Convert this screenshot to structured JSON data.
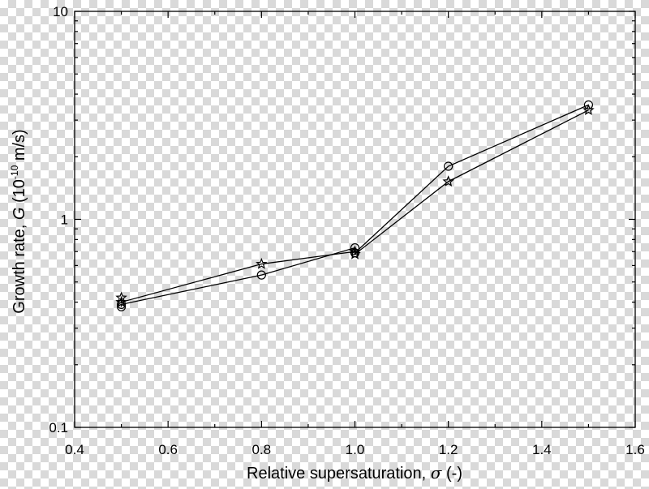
{
  "chart_data": {
    "type": "line",
    "title": "",
    "xlabel_prefix": "Relative supersaturation, ",
    "xlabel_symbol": "σ",
    "xlabel_suffix": " (-)",
    "ylabel_prefix": "Growth rate, ",
    "ylabel_symbol": "G",
    "ylabel_unit_open": " (10",
    "ylabel_exp": "-10",
    "ylabel_unit_close": " m/s)",
    "xlim": [
      0.4,
      1.6
    ],
    "ylim": [
      0.1,
      10
    ],
    "yscale": "log",
    "x_ticks": [
      0.4,
      0.6,
      0.8,
      1.0,
      1.2,
      1.4,
      1.6
    ],
    "x_tick_labels": [
      "0.4",
      "0.6",
      "0.8",
      "1.0",
      "1.2",
      "1.4",
      "1.6"
    ],
    "y_major_ticks": [
      0.1,
      1,
      10
    ],
    "y_tick_labels": [
      "0.1",
      "1",
      "10"
    ],
    "grid": false,
    "series": [
      {
        "marker": "circle",
        "x": [
          0.5,
          0.5,
          0.8,
          1.0,
          1.0,
          1.2,
          1.5
        ],
        "y": [
          0.38,
          0.39,
          0.54,
          0.73,
          0.69,
          1.8,
          3.55
        ]
      },
      {
        "marker": "star",
        "x": [
          0.5,
          0.5,
          0.8,
          1.0,
          1.0,
          1.2,
          1.5
        ],
        "y": [
          0.42,
          0.4,
          0.61,
          0.7,
          0.68,
          1.52,
          3.35
        ]
      }
    ]
  }
}
